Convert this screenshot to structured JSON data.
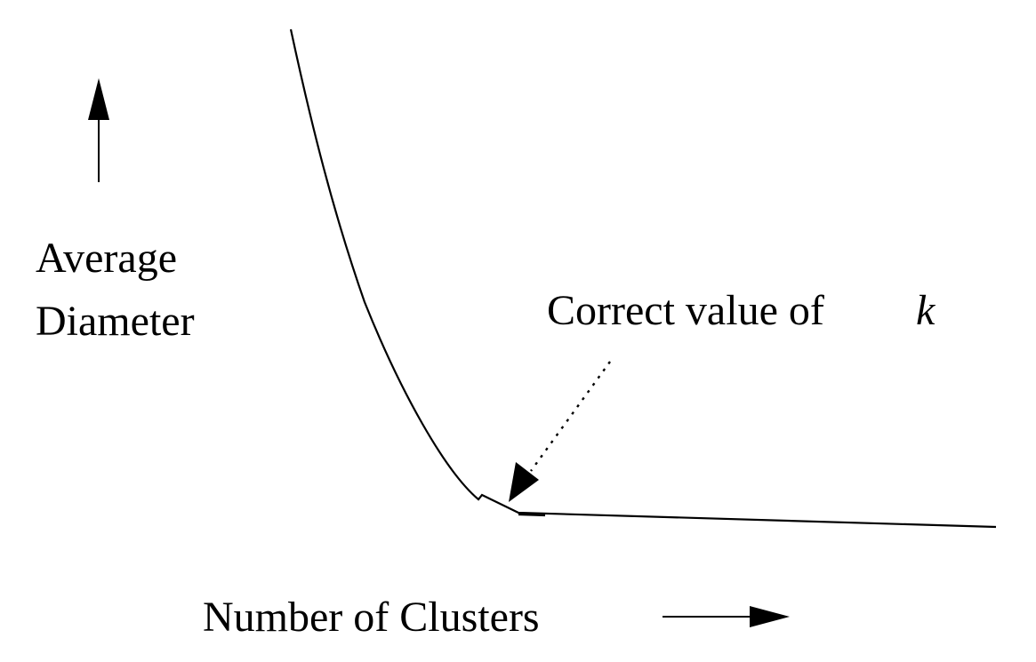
{
  "y_axis": {
    "label_line1": "Average",
    "label_line2": "Diameter"
  },
  "x_axis": {
    "label": "Number of Clusters"
  },
  "annotation": {
    "text": "Correct value of",
    "variable": "k"
  },
  "colors": {
    "stroke": "#000000",
    "background": "#ffffff"
  }
}
